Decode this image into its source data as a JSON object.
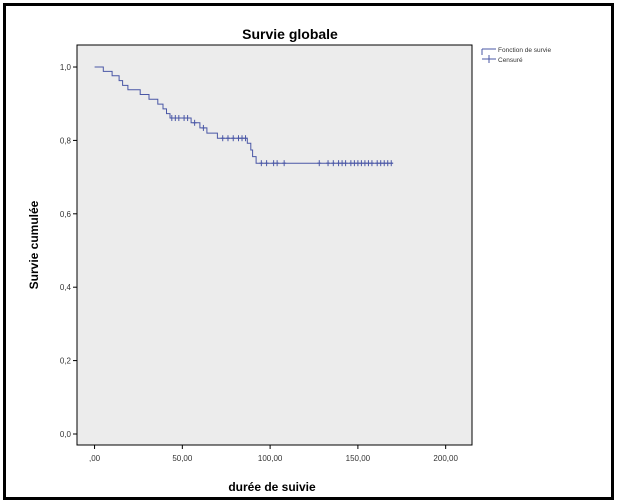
{
  "chart_data": {
    "type": "line",
    "subtype": "kaplan-meier",
    "title": "Survie globale",
    "xlabel": "durée de suivie",
    "ylabel": "Survie cumulée",
    "xlim": [
      -10,
      215
    ],
    "ylim": [
      -0.03,
      1.06
    ],
    "x_ticks": [
      0,
      50,
      100,
      150,
      200
    ],
    "x_tick_labels": [
      ",00",
      "50,00",
      "100,00",
      "150,00",
      "200,00"
    ],
    "y_ticks": [
      0,
      0.2,
      0.4,
      0.6,
      0.8,
      1.0
    ],
    "y_tick_labels": [
      "0,0",
      "0,2",
      "0,4",
      "0,6",
      "0,8",
      "1,0"
    ],
    "grid": false,
    "legend_position": "top-right",
    "colors": {
      "plot_background": "#ececec",
      "series": "#4a57a6"
    },
    "legend": [
      {
        "label": "Fonction de survie",
        "symbol": "line"
      },
      {
        "label": "Censuré",
        "symbol": "plus"
      }
    ],
    "series": [
      {
        "name": "Fonction de survie",
        "steps": [
          [
            0,
            1.0
          ],
          [
            5,
            0.988
          ],
          [
            10,
            0.976
          ],
          [
            14,
            0.963
          ],
          [
            16,
            0.95
          ],
          [
            19,
            0.938
          ],
          [
            26,
            0.925
          ],
          [
            31,
            0.912
          ],
          [
            36,
            0.899
          ],
          [
            39,
            0.886
          ],
          [
            41,
            0.873
          ],
          [
            43,
            0.861
          ],
          [
            55,
            0.848
          ],
          [
            60,
            0.834
          ],
          [
            64,
            0.82
          ],
          [
            70,
            0.806
          ],
          [
            87,
            0.792
          ],
          [
            89,
            0.774
          ],
          [
            90,
            0.756
          ],
          [
            92,
            0.738
          ],
          [
            170,
            0.738
          ]
        ],
        "censored": [
          [
            44,
            0.861
          ],
          [
            46,
            0.861
          ],
          [
            48,
            0.861
          ],
          [
            51,
            0.861
          ],
          [
            53,
            0.861
          ],
          [
            57,
            0.848
          ],
          [
            62,
            0.834
          ],
          [
            73,
            0.806
          ],
          [
            76,
            0.806
          ],
          [
            79,
            0.806
          ],
          [
            82,
            0.806
          ],
          [
            84,
            0.806
          ],
          [
            86,
            0.806
          ],
          [
            95,
            0.738
          ],
          [
            98,
            0.738
          ],
          [
            102,
            0.738
          ],
          [
            104,
            0.738
          ],
          [
            108,
            0.738
          ],
          [
            128,
            0.738
          ],
          [
            133,
            0.738
          ],
          [
            136,
            0.738
          ],
          [
            139,
            0.738
          ],
          [
            141,
            0.738
          ],
          [
            143,
            0.738
          ],
          [
            146,
            0.738
          ],
          [
            148,
            0.738
          ],
          [
            150,
            0.738
          ],
          [
            152,
            0.738
          ],
          [
            154,
            0.738
          ],
          [
            156,
            0.738
          ],
          [
            158,
            0.738
          ],
          [
            161,
            0.738
          ],
          [
            163,
            0.738
          ],
          [
            165,
            0.738
          ],
          [
            167,
            0.738
          ],
          [
            169,
            0.738
          ]
        ]
      }
    ]
  }
}
